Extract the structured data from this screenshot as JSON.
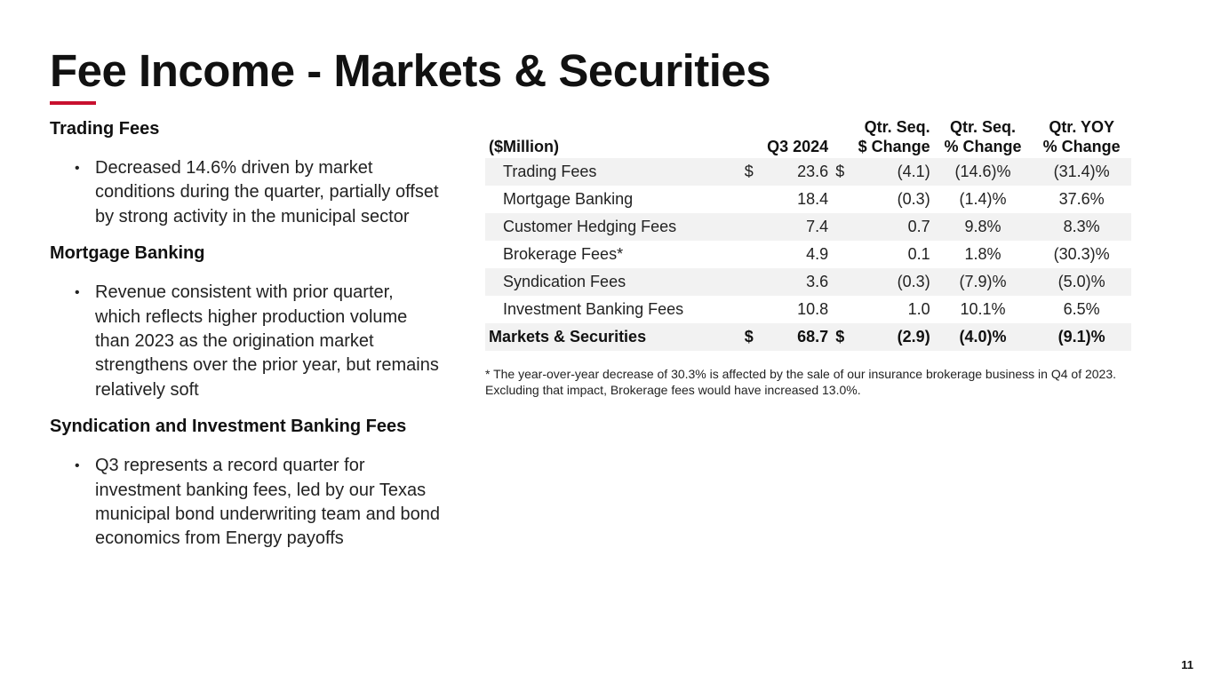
{
  "title": "Fee Income - Markets & Securities",
  "accent_color": "#c8102e",
  "sections": [
    {
      "heading": "Trading Fees",
      "bullet": "Decreased 14.6% driven by market conditions during the quarter, partially offset by strong activity in the municipal sector"
    },
    {
      "heading": "Mortgage Banking",
      "bullet": "Revenue consistent with prior quarter, which reflects higher production volume than 2023 as the origination market strengthens over the prior year, but remains relatively soft"
    },
    {
      "heading": "Syndication and Investment Banking Fees",
      "bullet": "Q3 represents a record quarter for investment banking fees, led by our Texas municipal bond underwriting team and bond economics from Energy payoffs"
    }
  ],
  "bullet_glyph": "•",
  "table": {
    "headers": {
      "label": "($Million)",
      "q3": "Q3 2024",
      "seq_dollar_1": "Qtr. Seq.",
      "seq_dollar_2": "$ Change",
      "seq_pct_1": "Qtr. Seq.",
      "seq_pct_2": "% Change",
      "yoy_1": "Qtr. YOY",
      "yoy_2": "% Change"
    },
    "rows": [
      {
        "label": "Trading Fees",
        "cur1": "$",
        "q3": "23.6",
        "cur2": "$",
        "seq_dollar": "(4.1)",
        "seq_pct": "(14.6)%",
        "yoy": "(31.4)%"
      },
      {
        "label": "Mortgage Banking",
        "cur1": "",
        "q3": "18.4",
        "cur2": "",
        "seq_dollar": "(0.3)",
        "seq_pct": "(1.4)%",
        "yoy": "37.6%"
      },
      {
        "label": "Customer Hedging Fees",
        "cur1": "",
        "q3": "7.4",
        "cur2": "",
        "seq_dollar": "0.7",
        "seq_pct": "9.8%",
        "yoy": "8.3%"
      },
      {
        "label": "Brokerage Fees*",
        "cur1": "",
        "q3": "4.9",
        "cur2": "",
        "seq_dollar": "0.1",
        "seq_pct": "1.8%",
        "yoy": "(30.3)%"
      },
      {
        "label": "Syndication Fees",
        "cur1": "",
        "q3": "3.6",
        "cur2": "",
        "seq_dollar": "(0.3)",
        "seq_pct": "(7.9)%",
        "yoy": "(5.0)%"
      },
      {
        "label": "Investment Banking Fees",
        "cur1": "",
        "q3": "10.8",
        "cur2": "",
        "seq_dollar": "1.0",
        "seq_pct": "10.1%",
        "yoy": "6.5%"
      }
    ],
    "total": {
      "label": "Markets & Securities",
      "cur1": "$",
      "q3": "68.7",
      "cur2": "$",
      "seq_dollar": "(2.9)",
      "seq_pct": "(4.0)%",
      "yoy": "(9.1)%"
    }
  },
  "footnote": "* The year-over-year decrease of 30.3% is affected by the sale of our insurance brokerage business in Q4 of 2023.  Excluding that impact, Brokerage fees would have increased 13.0%.",
  "page_number": "11"
}
